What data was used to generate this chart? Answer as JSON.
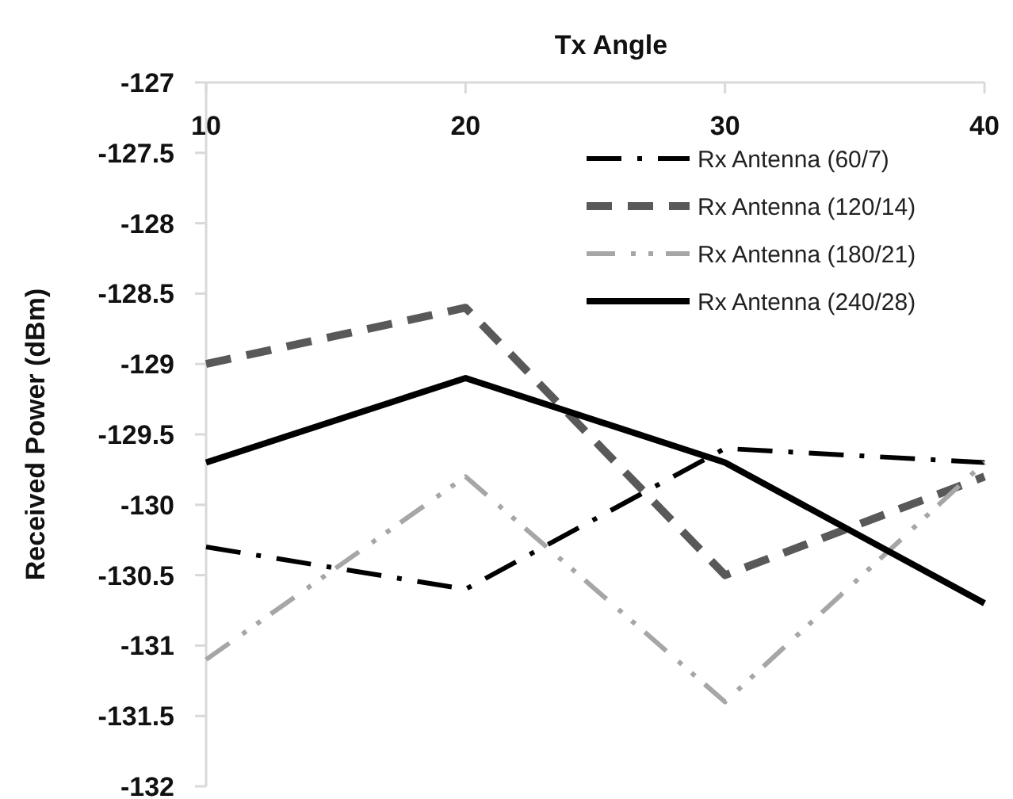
{
  "chart_data": {
    "type": "line",
    "xlabel": "Tx Angle",
    "ylabel": "Received Power (dBm)",
    "x": [
      10,
      20,
      30,
      40
    ],
    "xlim": [
      10,
      40
    ],
    "xticks": [
      10,
      20,
      30,
      40
    ],
    "ylim": [
      -132,
      -127
    ],
    "yticks": [
      -132,
      -131.5,
      -131,
      -130.5,
      -130,
      -129.5,
      -129,
      -128.5,
      -128,
      -127.5,
      -127
    ],
    "grid": false,
    "legend": "top right",
    "marker": "none",
    "series": [
      {
        "name": "Rx Antenna (60/7)",
        "color": "#000000",
        "line_style": "dashdot",
        "values": [
          -130.3,
          -130.6,
          -129.6,
          -129.7
        ]
      },
      {
        "name": "Rx Antenna (120/14)",
        "color": "#595959",
        "line_style": "dashed",
        "values": [
          -129,
          -128.6,
          -130.5,
          -129.8
        ]
      },
      {
        "name": "Rx Antenna (180/21)",
        "color": "#a6a6a6",
        "line_style": "dashdotdot",
        "values": [
          -131.1,
          -129.8,
          -131.4,
          -129.7
        ]
      },
      {
        "name": "Rx Antenna (240/28)",
        "color": "#000000",
        "line_style": "solid",
        "values": [
          -129.7,
          -129.1,
          -129.7,
          -130.7
        ]
      }
    ]
  }
}
